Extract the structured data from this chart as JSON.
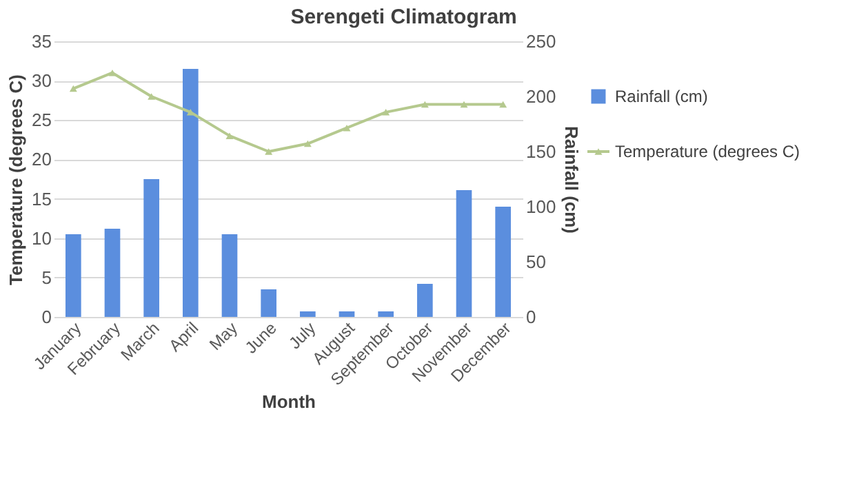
{
  "chart_data": {
    "type": "bar",
    "title": "Serengeti Climatogram",
    "xlabel": "Month",
    "ylabel": "Temperature (degrees C)",
    "y2label": "Rainfall (cm)",
    "categories": [
      "January",
      "February",
      "March",
      "April",
      "May",
      "June",
      "July",
      "August",
      "September",
      "October",
      "November",
      "December"
    ],
    "series": [
      {
        "name": "Rainfall (cm)",
        "axis": "y2",
        "color": "#5b8ede",
        "values": [
          75,
          80,
          125,
          225,
          75,
          25,
          5,
          5,
          5,
          30,
          115,
          100
        ]
      },
      {
        "name": "Temperature (degrees C)",
        "type": "line",
        "axis": "y",
        "color": "#b5c98e",
        "marker": "triangle",
        "values": [
          29,
          31,
          28,
          26,
          23,
          21,
          22,
          24,
          26,
          27,
          27,
          27
        ]
      }
    ],
    "ylim": [
      0,
      35
    ],
    "yticks": [
      0,
      5,
      10,
      15,
      20,
      25,
      30,
      35
    ],
    "y2lim": [
      0,
      250
    ],
    "y2ticks": [
      0,
      50,
      100,
      150,
      200,
      250
    ],
    "grid": "y",
    "legend": "right"
  }
}
